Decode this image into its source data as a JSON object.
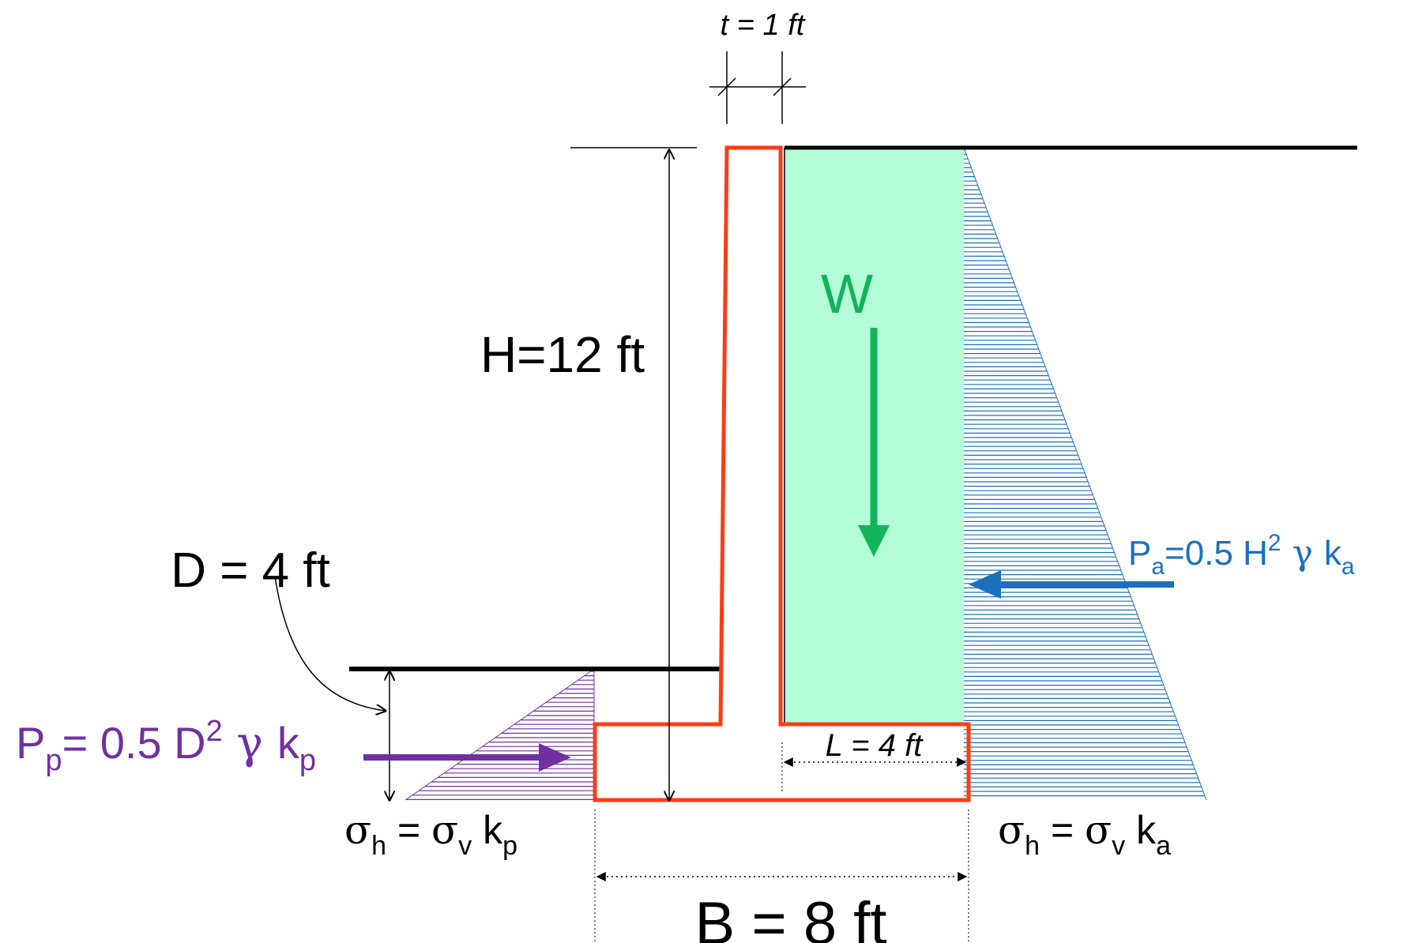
{
  "labels": {
    "t_label": "t = 1 ft",
    "H_label": "H=12 ft",
    "D_label": "D = 4 ft",
    "W_label": "W",
    "L_label": "L = 4 ft",
    "B_label": "B = 8 ft",
    "Pa": {
      "P": "P",
      "P_sub": "a",
      "eq": "=0.5 H",
      "sup": "2",
      "gamma": " γ ",
      "k": "k",
      "k_sub": "a"
    },
    "Pp": {
      "P": "P",
      "P_sub": "p",
      "eq": "= 0.5 D",
      "sup": "2",
      "gamma": " γ ",
      "k": "k",
      "k_sub": "p"
    },
    "sigma_left": {
      "s1": "σ",
      "s1_sub": "h",
      "eq": " = ",
      "s2": "σ",
      "s2_sub": "v",
      "k": " k",
      "k_sub": "p"
    },
    "sigma_right": {
      "s1": "σ",
      "s1_sub": "h",
      "eq": " = ",
      "s2": "σ",
      "s2_sub": "v",
      "k": " k",
      "k_sub": "a"
    }
  },
  "colors": {
    "wall": "#ff3b14",
    "soil_fill": "#b4fdd8",
    "W_arrow": "#13b45a",
    "active": "#1b70c0",
    "passive": "#7030a0",
    "ground": "#000000"
  },
  "icons": {
    "W_arrow": "arrow-down-icon",
    "Pa_arrow": "arrow-left-icon",
    "Pp_arrow": "arrow-right-icon"
  }
}
